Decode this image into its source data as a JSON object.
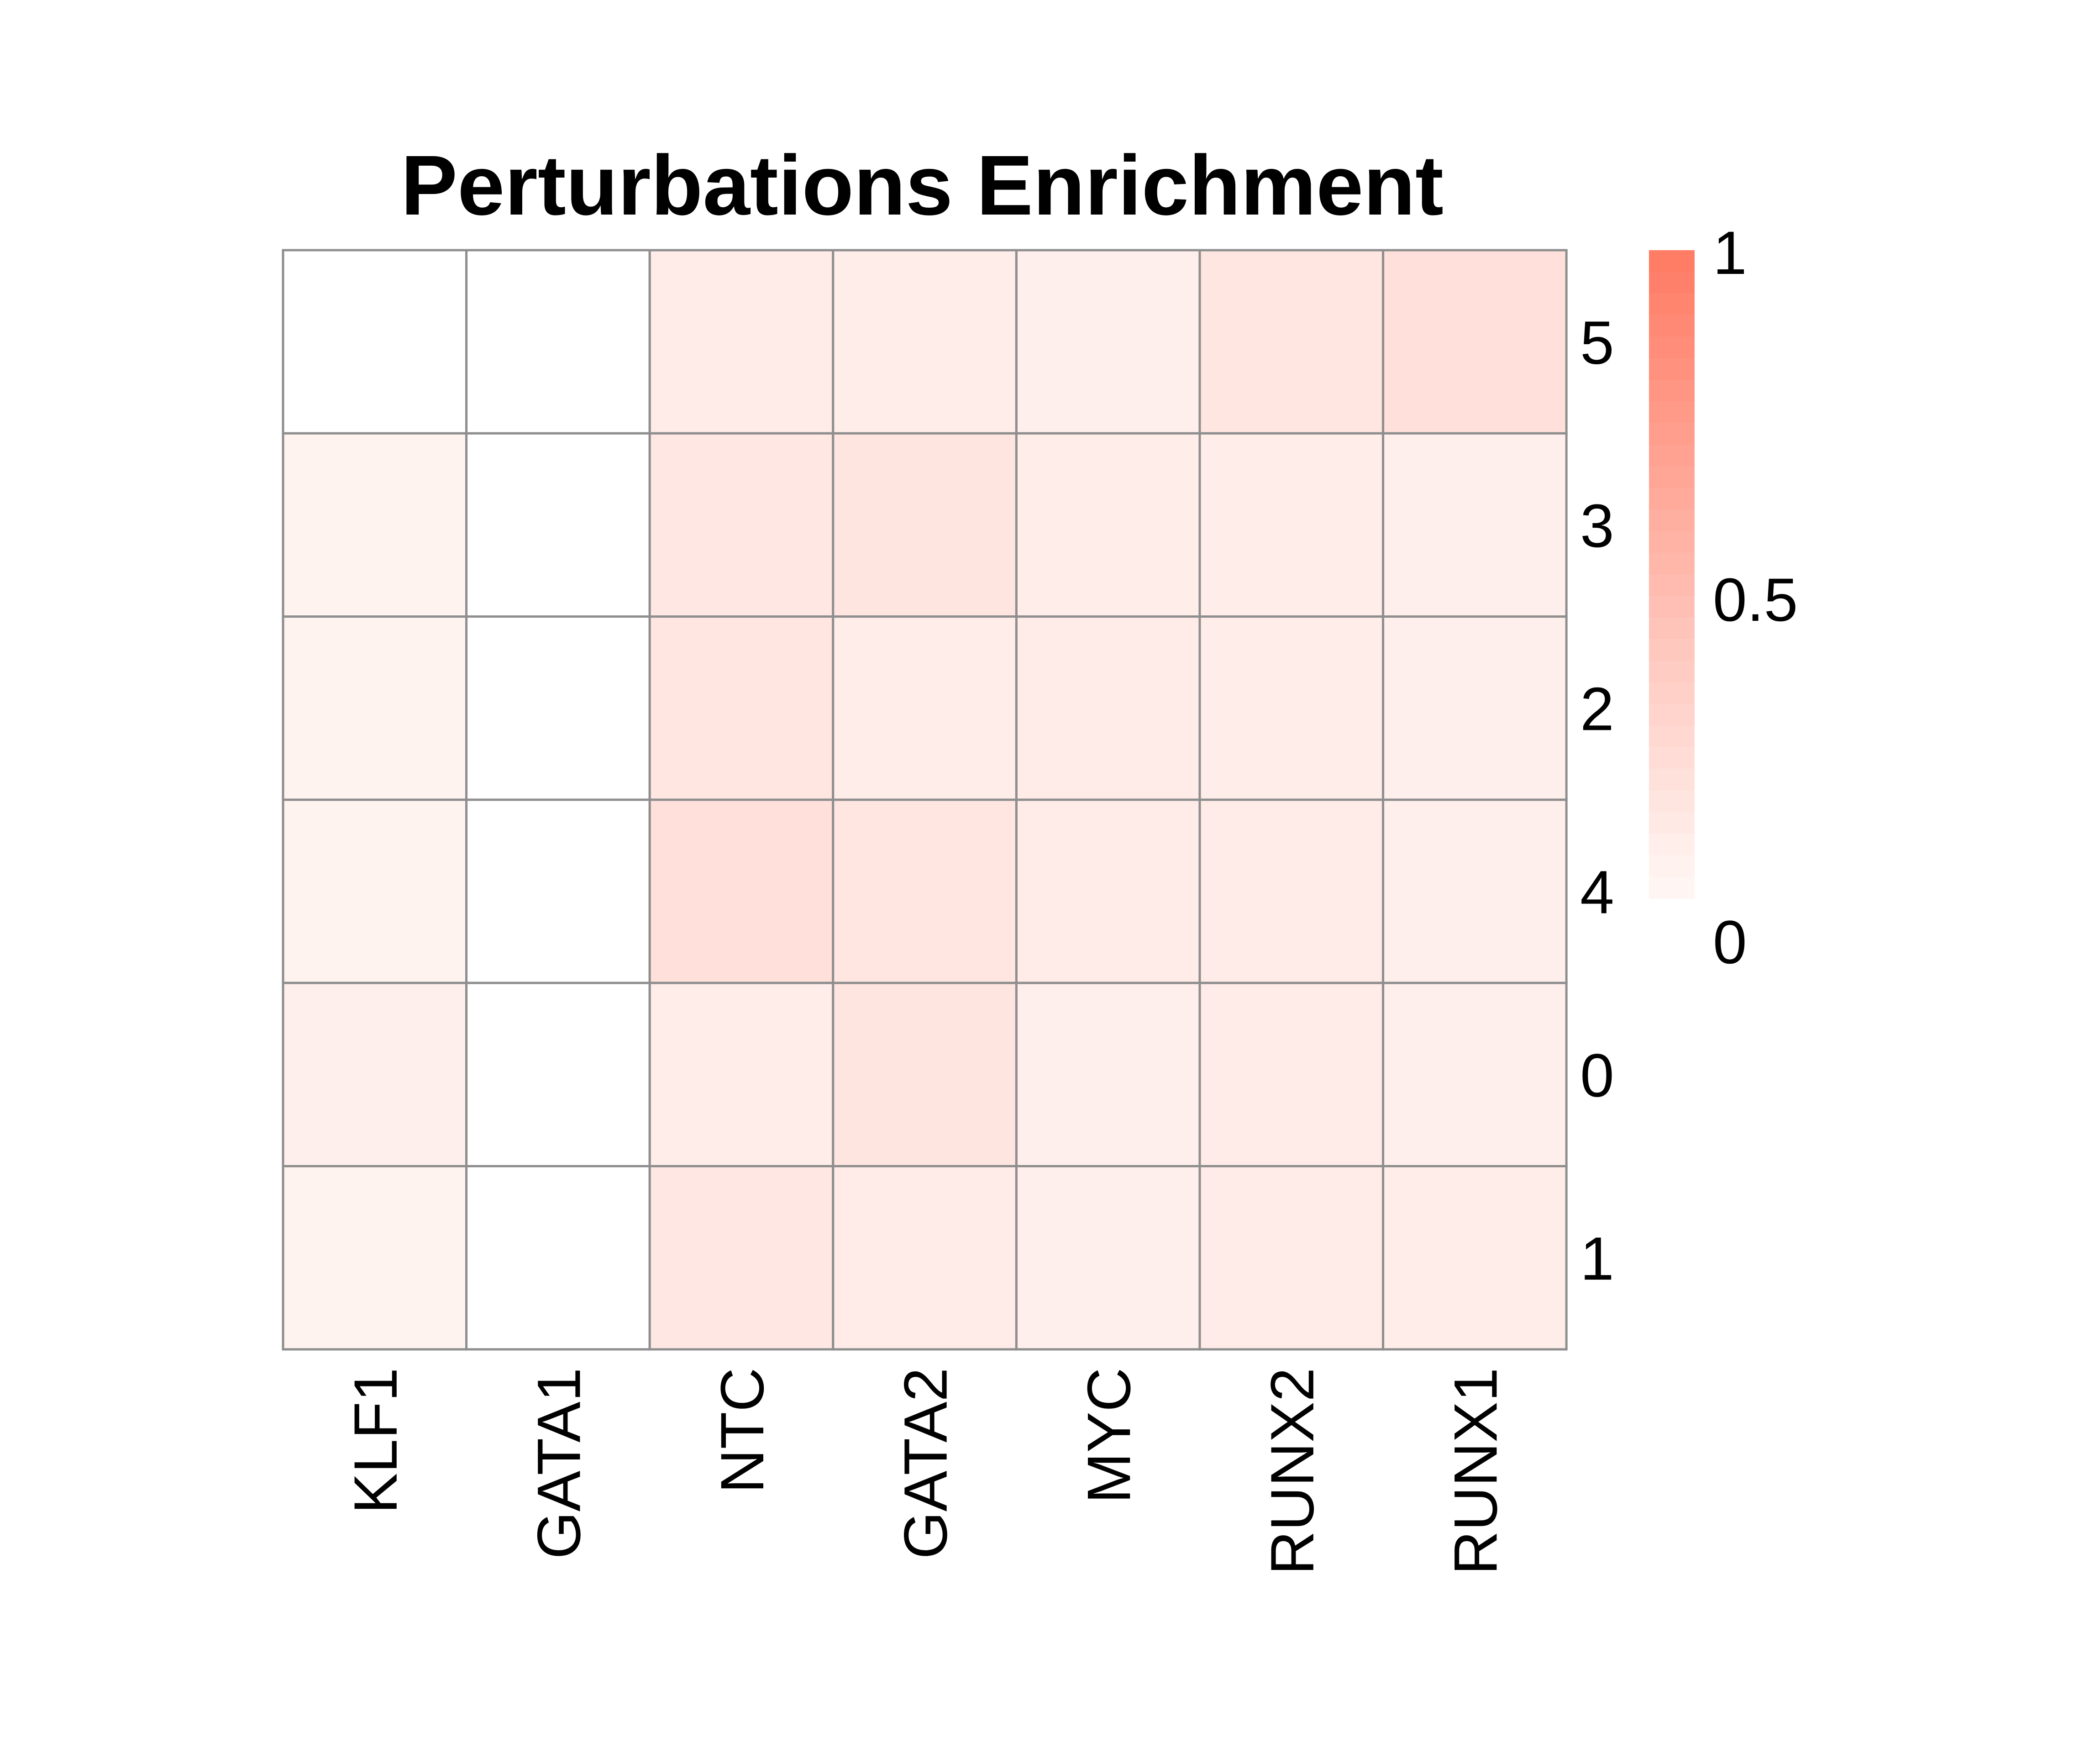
{
  "chart_data": {
    "type": "heatmap",
    "title": "Perturbations Enrichment",
    "columns": [
      "KLF1",
      "GATA1",
      "NTC",
      "GATA2",
      "MYC",
      "RUNX2",
      "RUNX1"
    ],
    "rows": [
      "5",
      "3",
      "2",
      "4",
      "0",
      "1"
    ],
    "values": [
      [
        0.0,
        0.0,
        0.1,
        0.09,
        0.07,
        0.14,
        0.19
      ],
      [
        0.04,
        0.0,
        0.13,
        0.15,
        0.09,
        0.09,
        0.07
      ],
      [
        0.04,
        0.0,
        0.14,
        0.09,
        0.1,
        0.09,
        0.07
      ],
      [
        0.04,
        0.0,
        0.19,
        0.14,
        0.1,
        0.1,
        0.07
      ],
      [
        0.07,
        0.0,
        0.09,
        0.15,
        0.07,
        0.1,
        0.07
      ],
      [
        0.04,
        0.0,
        0.13,
        0.1,
        0.07,
        0.1,
        0.09
      ]
    ],
    "legend": {
      "min": 0,
      "max": 1,
      "ticks": [
        "1",
        "0.5",
        "0"
      ],
      "low_color": "#fff8f6",
      "high_color": "#ff7a63"
    },
    "grid_color": "#8e8e8e"
  }
}
